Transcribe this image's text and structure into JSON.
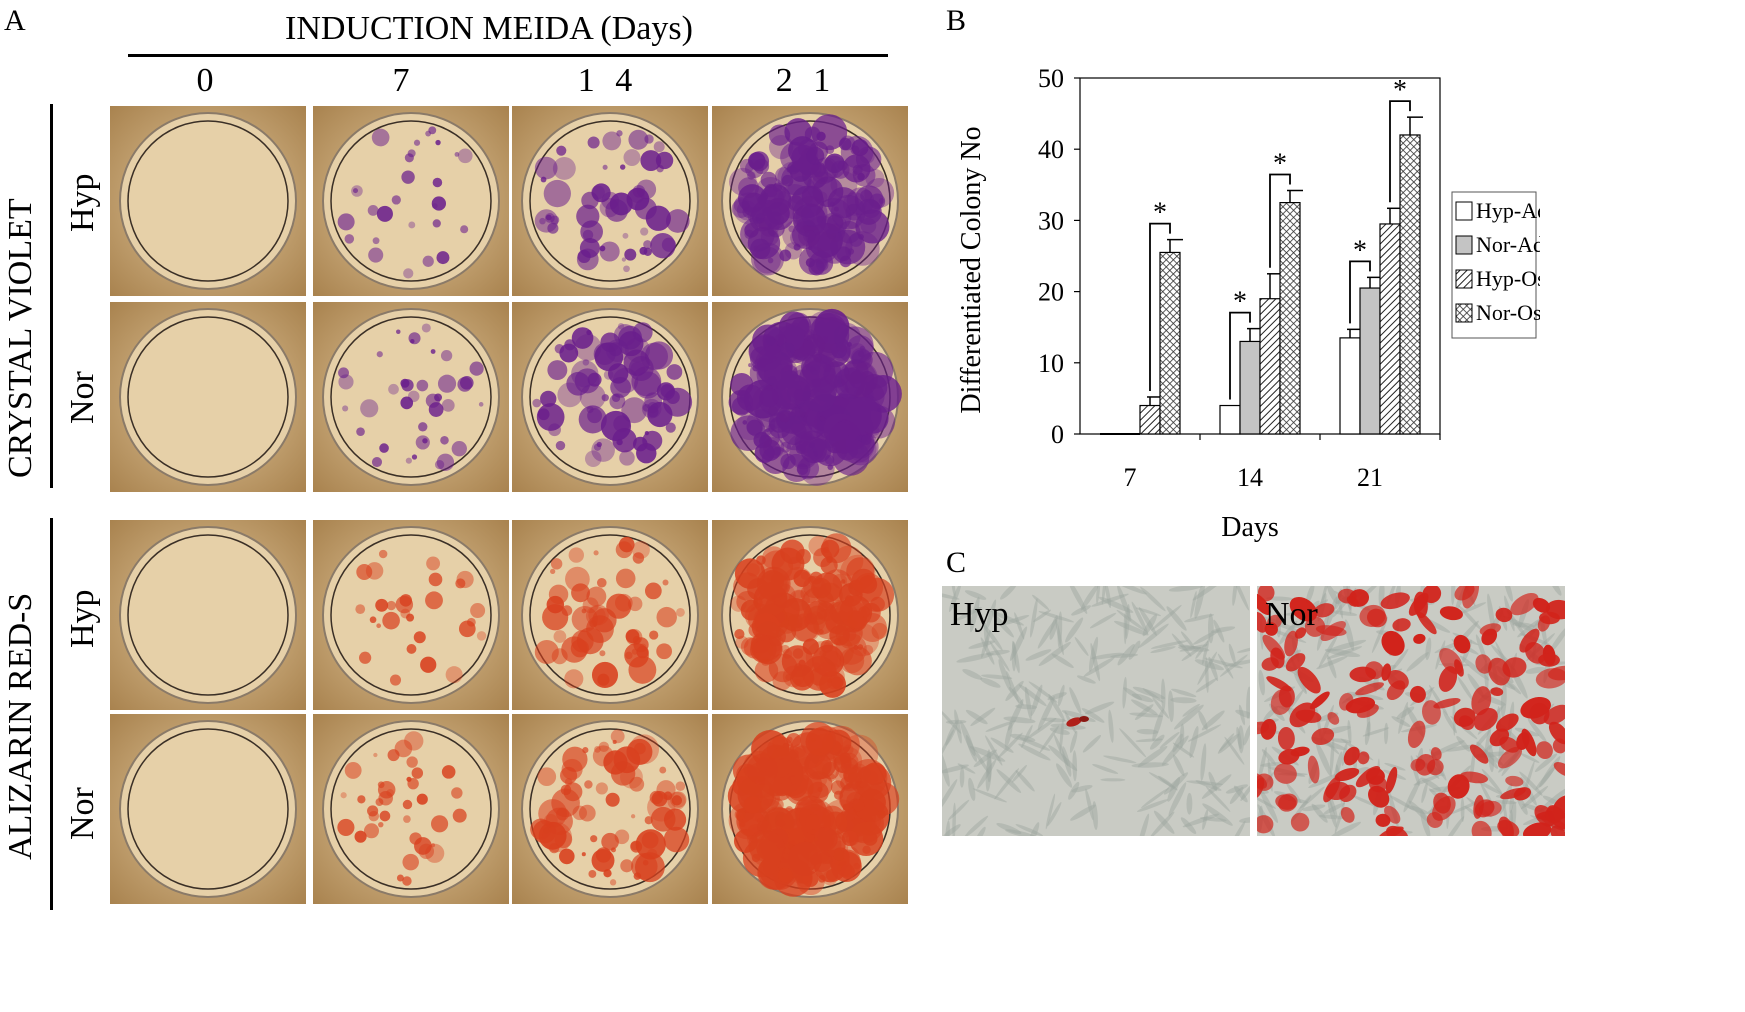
{
  "panel_a": {
    "letter": "A",
    "header": "INDUCTION MEIDA (Days)",
    "columns": [
      "0",
      "7",
      "1 4",
      "2 1"
    ],
    "groups": [
      {
        "stain": "CRYSTAL VIOLET",
        "rows": [
          "Hyp",
          "Nor"
        ],
        "color": "#6a1e8c"
      },
      {
        "stain": "ALIZARIN RED-S",
        "rows": [
          "Hyp",
          "Nor"
        ],
        "color": "#d8401e"
      }
    ],
    "plate_background": "#c9a677"
  },
  "panel_b": {
    "letter": "B",
    "chart_data": {
      "type": "bar",
      "xlabel": "Days",
      "ylabel": "Differentiated Colony No",
      "categories": [
        "7",
        "14",
        "21"
      ],
      "ylim": [
        0,
        50
      ],
      "yticks": [
        "0",
        "10",
        "20",
        "30",
        "40",
        "50"
      ],
      "series": [
        {
          "name": "Hyp-Adipo",
          "values": [
            0,
            4,
            13.5
          ],
          "errors": [
            0,
            0,
            1.2
          ],
          "fill": "white"
        },
        {
          "name": "Nor-Adipo",
          "values": [
            0,
            13,
            20.5
          ],
          "errors": [
            0,
            1.8,
            1.5
          ],
          "fill": "gray"
        },
        {
          "name": "Hyp-Osteo",
          "values": [
            4,
            19,
            29.5
          ],
          "errors": [
            1.2,
            3.5,
            2.2
          ],
          "fill": "hatch"
        },
        {
          "name": "Nor-Osteo",
          "values": [
            25.5,
            32.5,
            42
          ],
          "errors": [
            1.8,
            1.7,
            2.5
          ],
          "fill": "crosshatch"
        }
      ],
      "significance_marker": "*",
      "legend_position": "right"
    }
  },
  "panel_c": {
    "letter": "C",
    "images": [
      {
        "label": "Hyp"
      },
      {
        "label": "Nor"
      }
    ]
  }
}
